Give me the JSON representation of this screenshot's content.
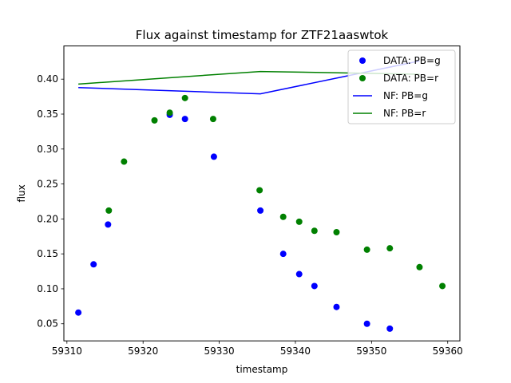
{
  "chart_data": {
    "type": "scatter",
    "title": "Flux against timestamp for ZTF21aaswtok",
    "xlabel": "timestamp",
    "ylabel": "flux",
    "xlim": [
      59309.6,
      59361.6
    ],
    "ylim": [
      0.0255,
      0.4475
    ],
    "xticks": [
      59310,
      59320,
      59330,
      59340,
      59350,
      59360
    ],
    "yticks": [
      0.05,
      0.1,
      0.15,
      0.2,
      0.25,
      0.3,
      0.35,
      0.4
    ],
    "grid": false,
    "legend_position": "top-right",
    "series": [
      {
        "name": "DATA: PB=g",
        "kind": "points",
        "color": "#0000ff",
        "x": [
          59311.5,
          59313.5,
          59315.4,
          59323.5,
          59325.5,
          59329.3,
          59335.4,
          59338.4,
          59340.5,
          59342.5,
          59345.4,
          59349.4,
          59352.4
        ],
        "y": [
          0.066,
          0.135,
          0.192,
          0.349,
          0.343,
          0.289,
          0.212,
          0.15,
          0.121,
          0.104,
          0.074,
          0.05,
          0.043
        ]
      },
      {
        "name": "DATA: PB=r",
        "kind": "points",
        "color": "#008000",
        "x": [
          59315.5,
          59317.5,
          59321.5,
          59323.5,
          59325.5,
          59329.2,
          59335.3,
          59338.4,
          59340.5,
          59342.5,
          59345.4,
          59349.4,
          59352.4,
          59356.3,
          59359.3
        ],
        "y": [
          0.212,
          0.282,
          0.341,
          0.352,
          0.373,
          0.343,
          0.241,
          0.203,
          0.196,
          0.183,
          0.181,
          0.156,
          0.158,
          0.131,
          0.104
        ]
      },
      {
        "name": "NF: PB=g",
        "kind": "line",
        "color": "#0000ff",
        "x": [
          59311.5,
          59335.4,
          59356.3
        ],
        "y": [
          0.388,
          0.379,
          0.426
        ]
      },
      {
        "name": "NF: PB=r",
        "kind": "line",
        "color": "#008000",
        "x": [
          59311.5,
          59335.4,
          59356.3
        ],
        "y": [
          0.393,
          0.411,
          0.407
        ]
      }
    ]
  }
}
